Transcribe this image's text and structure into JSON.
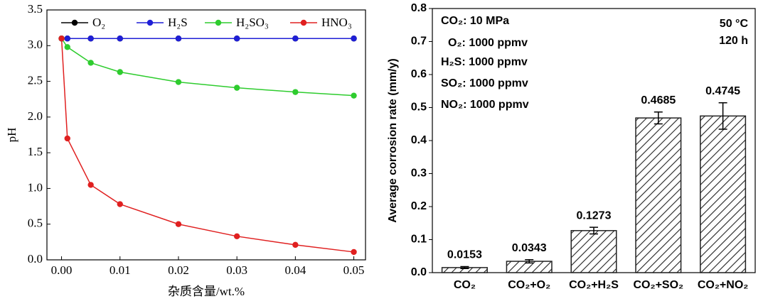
{
  "chart_data": [
    {
      "type": "line",
      "x": [
        0,
        0.001,
        0.005,
        0.01,
        0.02,
        0.03,
        0.04,
        0.05
      ],
      "series": [
        {
          "name": "O₂",
          "color": "#000000",
          "values": [
            3.1,
            3.1,
            3.1,
            3.1,
            3.1,
            3.1,
            3.1,
            3.1
          ]
        },
        {
          "name": "H₂S",
          "color": "#1f1fd6",
          "values": [
            3.1,
            3.1,
            3.1,
            3.1,
            3.1,
            3.1,
            3.1,
            3.1
          ]
        },
        {
          "name": "H₂SO₃",
          "color": "#2ecc2e",
          "values": [
            3.1,
            2.98,
            2.76,
            2.63,
            2.49,
            2.41,
            2.35,
            2.3
          ]
        },
        {
          "name": "HNO₃",
          "color": "#e02020",
          "values": [
            3.1,
            1.7,
            1.05,
            0.78,
            0.5,
            0.33,
            0.21,
            0.11
          ]
        }
      ],
      "xlim": [
        -0.0025,
        0.052
      ],
      "xticks": [
        {
          "value": 0,
          "label": "0.00"
        },
        {
          "value": 0.01,
          "label": "0.01"
        },
        {
          "value": 0.02,
          "label": "0.02"
        },
        {
          "value": 0.03,
          "label": "0.03"
        },
        {
          "value": 0.04,
          "label": "0.04"
        },
        {
          "value": 0.05,
          "label": "0.05"
        }
      ],
      "ylim": [
        0,
        3.5
      ],
      "yticks": [
        {
          "value": 0,
          "label": "0.0"
        },
        {
          "value": 0.5,
          "label": "0.5"
        },
        {
          "value": 1,
          "label": "1.0"
        },
        {
          "value": 1.5,
          "label": "1.5"
        },
        {
          "value": 2,
          "label": "2.0"
        },
        {
          "value": 2.5,
          "label": "2.5"
        },
        {
          "value": 3,
          "label": "3.0"
        },
        {
          "value": 3.5,
          "label": "3.5"
        }
      ],
      "xlabel": "杂质含量/wt.%",
      "ylabel": "pH",
      "legend": "top"
    },
    {
      "type": "bar",
      "categories": [
        "CO₂",
        "CO₂+O₂",
        "CO₂+H₂S",
        "CO₂+SO₂",
        "CO₂+NO₂"
      ],
      "values": [
        0.0153,
        0.0343,
        0.1273,
        0.4685,
        0.4745
      ],
      "errors": [
        0.003,
        0.005,
        0.01,
        0.018,
        0.04
      ],
      "color": "#222222",
      "ylim": [
        0,
        0.8
      ],
      "yticks": [
        {
          "value": 0,
          "label": "0.0"
        },
        {
          "value": 0.1,
          "label": "0.1"
        },
        {
          "value": 0.2,
          "label": "0.2"
        },
        {
          "value": 0.3,
          "label": "0.3"
        },
        {
          "value": 0.4,
          "label": "0.4"
        },
        {
          "value": 0.5,
          "label": "0.5"
        },
        {
          "value": 0.6,
          "label": "0.6"
        },
        {
          "value": 0.7,
          "label": "0.7"
        },
        {
          "value": 0.8,
          "label": "0.8"
        }
      ],
      "ylabel": "Average corrosion rate (mm/y)",
      "annotations": [
        "CO₂: 10 MPa",
        "O₂: 1000 ppmv",
        "H₂S: 1000 ppmv",
        "SO₂: 1000 ppmv",
        "NO₂: 1000 ppmv",
        "50 °C",
        "120 h"
      ]
    }
  ]
}
